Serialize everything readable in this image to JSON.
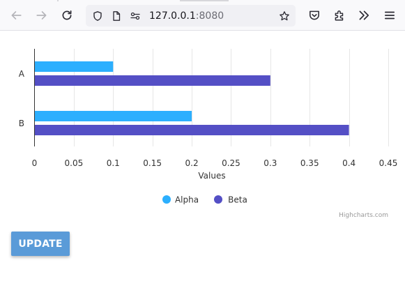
{
  "browser": {
    "url_host": "127.0.0.1",
    "url_port": ":8080",
    "icons": [
      "back-arrow-icon",
      "forward-arrow-icon",
      "reload-icon",
      "shield-icon",
      "page-icon",
      "permissions-icon",
      "star-icon",
      "pocket-icon",
      "extensions-icon",
      "overflow-chevrons-icon",
      "hamburger-menu-icon"
    ]
  },
  "chart_data": {
    "type": "bar",
    "orientation": "horizontal",
    "categories": [
      "A",
      "B"
    ],
    "series": [
      {
        "name": "Alpha",
        "color": "#2caffe",
        "values": [
          0.1,
          0.2
        ]
      },
      {
        "name": "Beta",
        "color": "#544fc5",
        "values": [
          0.3,
          0.4
        ]
      }
    ],
    "xlabel": "Values",
    "ylabel": "",
    "xlim": [
      0,
      0.45
    ],
    "ticks": [
      "0",
      "0.05",
      "0.1",
      "0.15",
      "0.2",
      "0.25",
      "0.3",
      "0.35",
      "0.4",
      "0.45"
    ],
    "grid": true,
    "legend": "bottom-center",
    "credit": "Highcharts.com"
  },
  "update_button": {
    "label": "UPDATE"
  }
}
